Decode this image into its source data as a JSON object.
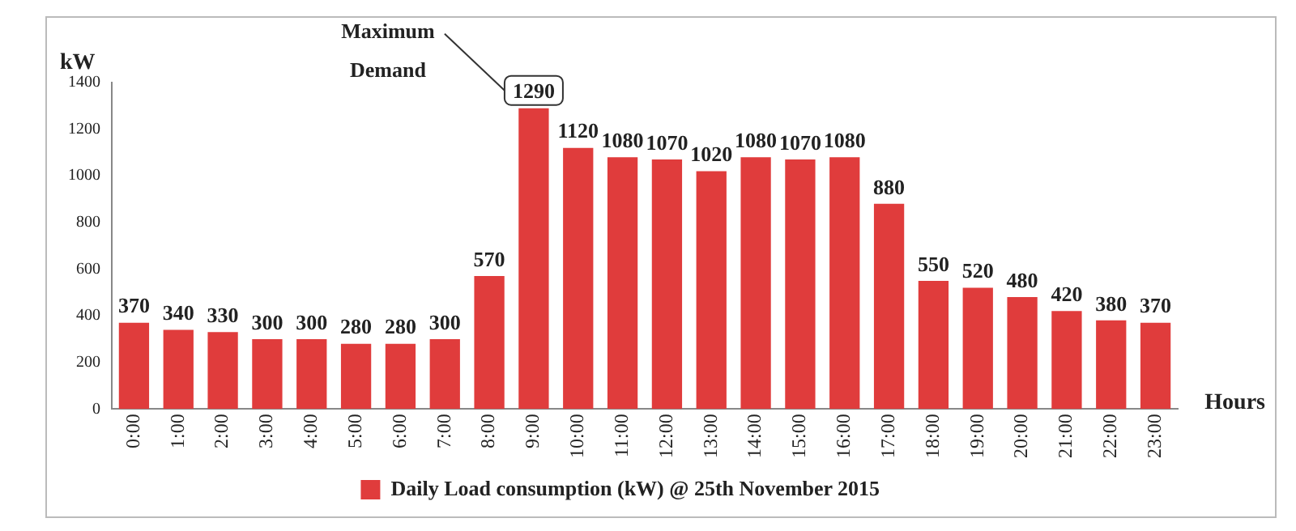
{
  "chart_data": {
    "type": "bar",
    "xlabel": "Hours",
    "ylabel": "kW",
    "categories": [
      "0:00",
      "1:00",
      "2:00",
      "3:00",
      "4:00",
      "5:00",
      "6:00",
      "7:00",
      "8:00",
      "9:00",
      "10:00",
      "11:00",
      "12:00",
      "13:00",
      "14:00",
      "15:00",
      "16:00",
      "17:00",
      "18:00",
      "19:00",
      "20:00",
      "21:00",
      "22:00",
      "23:00"
    ],
    "series": [
      {
        "name": "Daily Load consumption (kW) @ 25th November 2015",
        "color": "#e03c3c",
        "values": [
          370,
          340,
          330,
          300,
          300,
          280,
          280,
          300,
          570,
          1290,
          1120,
          1080,
          1070,
          1020,
          1080,
          1070,
          1080,
          880,
          550,
          520,
          480,
          420,
          380,
          370
        ]
      }
    ],
    "ylim": [
      0,
      1400
    ],
    "yticks": [
      0,
      200,
      400,
      600,
      800,
      1000,
      1200,
      1400
    ],
    "grid": false,
    "legend": "bottom",
    "data_labels": true,
    "annotations": [
      "Maximum Demand"
    ]
  }
}
